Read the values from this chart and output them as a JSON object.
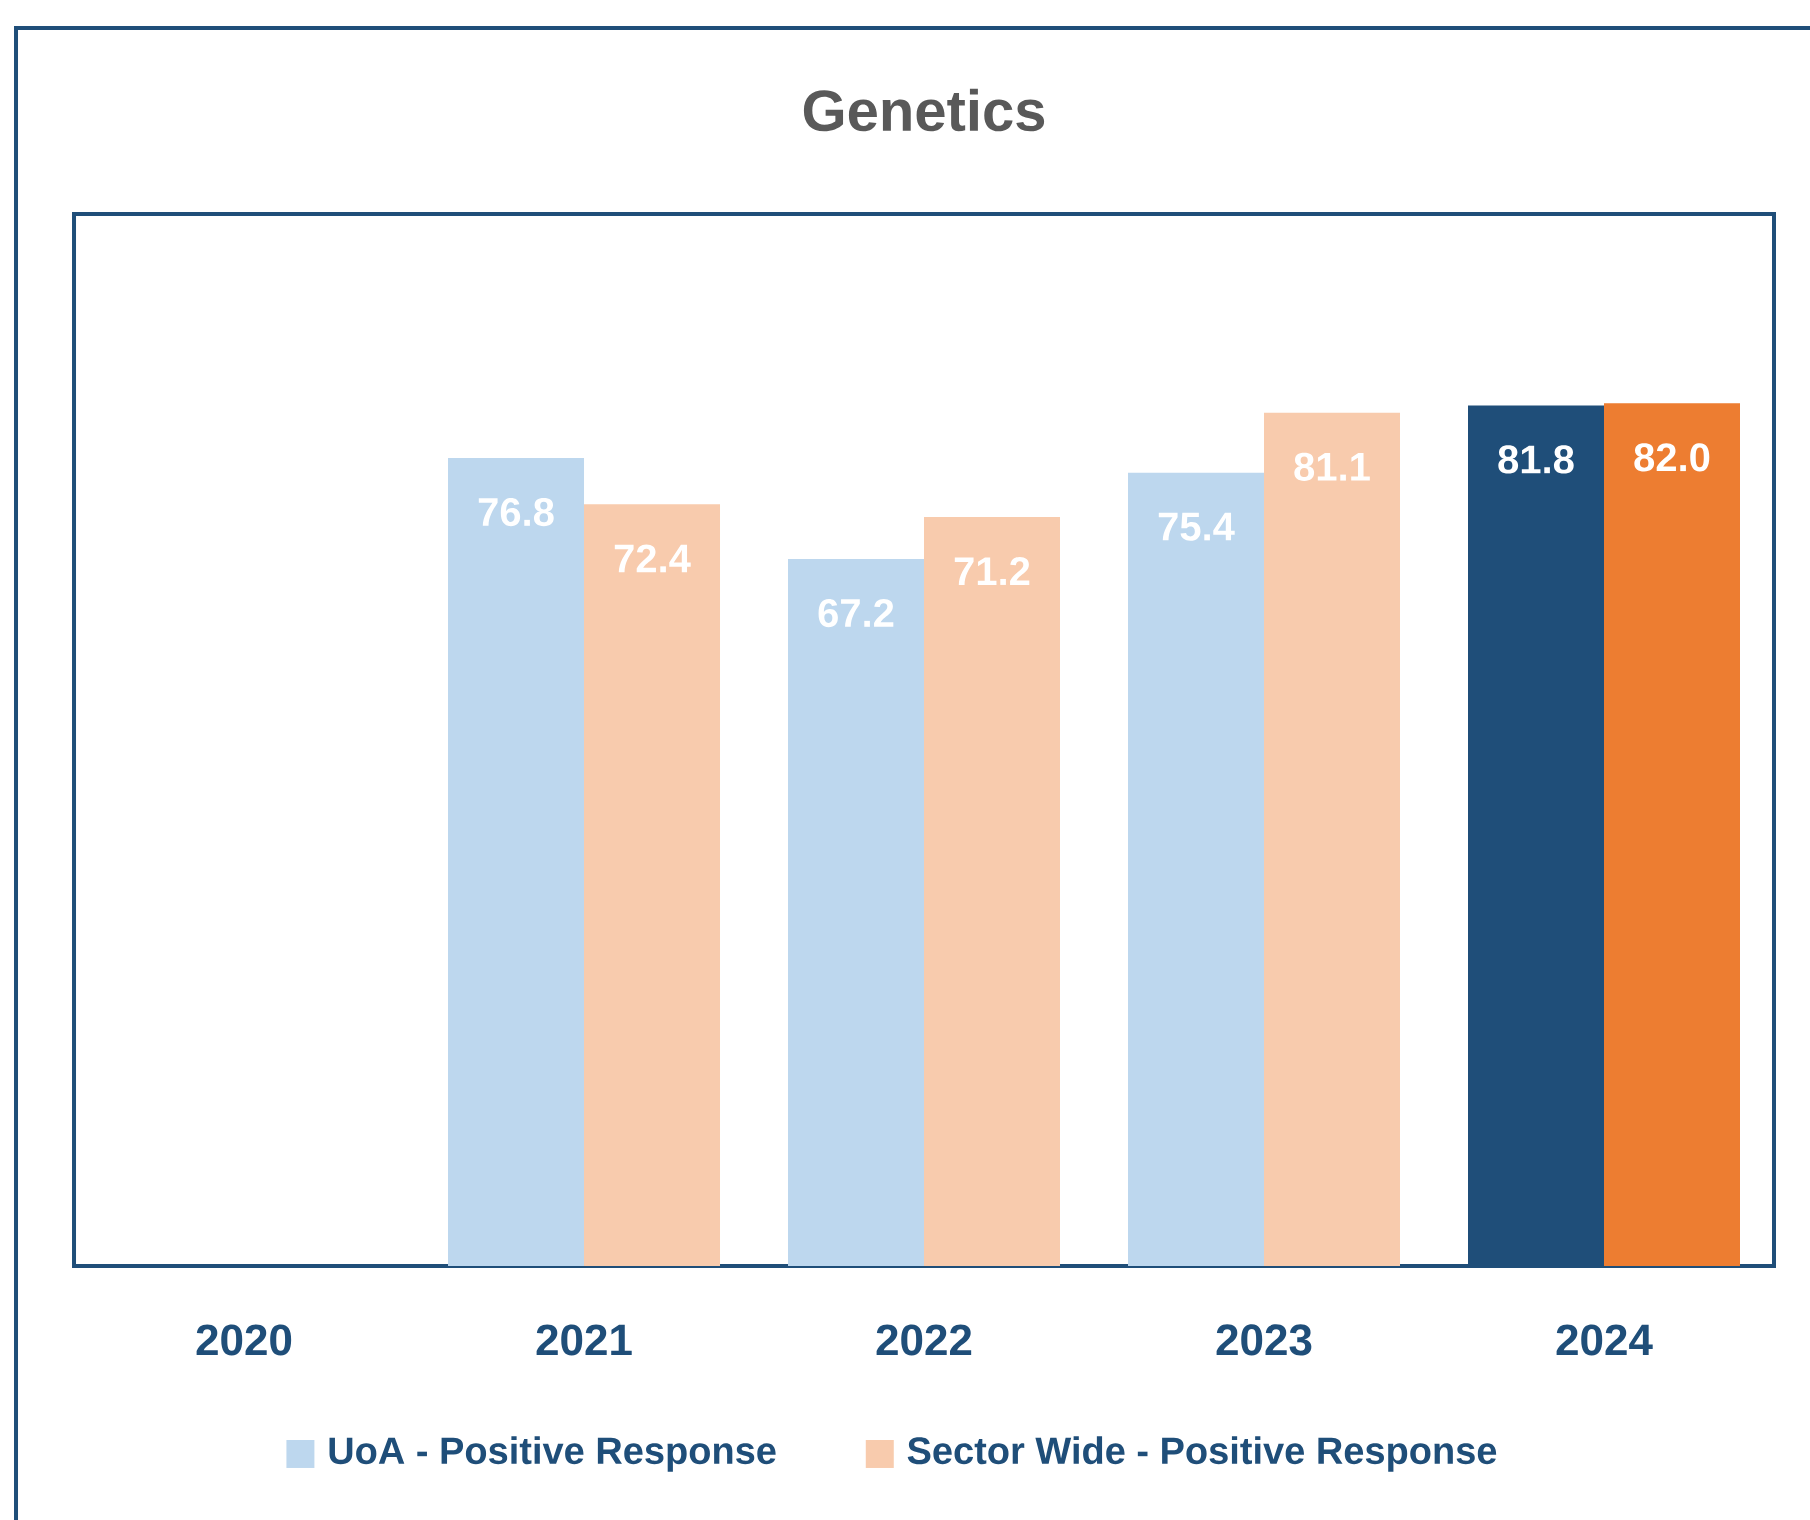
{
  "chart_data": {
    "type": "bar",
    "title": "Genetics",
    "categories": [
      "2020",
      "2021",
      "2022",
      "2023",
      "2024"
    ],
    "series": [
      {
        "name": "UoA - Positive Response",
        "color": "#bdd7ee",
        "colors": [
          "#bdd7ee",
          "#bdd7ee",
          "#bdd7ee",
          "#bdd7ee",
          "#1f4e79"
        ],
        "values": [
          null,
          76.8,
          67.2,
          75.4,
          81.8
        ],
        "value_labels": [
          null,
          "76.8",
          "67.2",
          "75.4",
          "81.8"
        ]
      },
      {
        "name": "Sector Wide - Positive Response",
        "color": "#f8cbad",
        "colors": [
          "#f8cbad",
          "#f8cbad",
          "#f8cbad",
          "#f8cbad",
          "#ed7d31"
        ],
        "values": [
          null,
          72.4,
          71.2,
          81.1,
          82.0
        ],
        "value_labels": [
          null,
          "72.4",
          "71.2",
          "81.1",
          "82.0"
        ]
      }
    ],
    "ylim": [
      0,
      100
    ],
    "legend": "bottom",
    "tick_labels": "x"
  }
}
